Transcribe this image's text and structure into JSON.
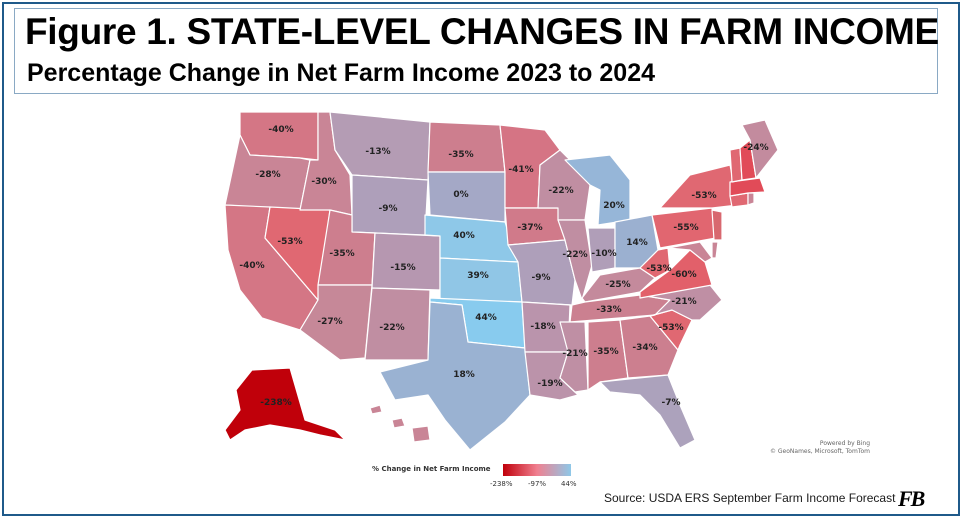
{
  "title": "Figure 1. STATE-LEVEL CHANGES IN FARM INCOME",
  "subtitle": "Percentage Change in Net Farm Income 2023 to 2024",
  "attribution": {
    "line1": "Powered by Bing",
    "line2": "© GeoNames, Microsoft, TomTom"
  },
  "legend": {
    "title": "% Change in Net Farm Income",
    "ticks": [
      "-238%",
      "-97%",
      "44%"
    ],
    "colors": {
      "low": "#c0000a",
      "mid": "#f08090",
      "high": "#8ec8e8"
    }
  },
  "source": "Source: USDA ERS September Farm Income Forecast",
  "logo_text": "FB",
  "states": [
    {
      "id": "WA",
      "label": "-40%",
      "color": "#d47685"
    },
    {
      "id": "OR",
      "label": "-28%",
      "color": "#c98596"
    },
    {
      "id": "CA",
      "label": "-40%",
      "color": "#d47685"
    },
    {
      "id": "NV",
      "label": "-53%",
      "color": "#e06872"
    },
    {
      "id": "ID",
      "label": "-30%",
      "color": "#c98596"
    },
    {
      "id": "MT",
      "label": "-13%",
      "color": "#b49cb4"
    },
    {
      "id": "WY",
      "label": "-9%",
      "color": "#ae9fba"
    },
    {
      "id": "UT",
      "label": "-35%",
      "color": "#cd7e8e"
    },
    {
      "id": "AZ",
      "label": "-27%",
      "color": "#c68898"
    },
    {
      "id": "CO",
      "label": "-15%",
      "color": "#b697b0"
    },
    {
      "id": "NM",
      "label": "-22%",
      "color": "#c08ea2"
    },
    {
      "id": "ND",
      "label": "-35%",
      "color": "#cd7e8e"
    },
    {
      "id": "SD",
      "label": "0%",
      "color": "#a4a8c6"
    },
    {
      "id": "NE",
      "label": "40%",
      "color": "#8ec8e8"
    },
    {
      "id": "KS",
      "label": "39%",
      "color": "#90c6e6"
    },
    {
      "id": "OK",
      "label": "44%",
      "color": "#88cbee"
    },
    {
      "id": "TX",
      "label": "18%",
      "color": "#9ab2d2"
    },
    {
      "id": "MN",
      "label": "-41%",
      "color": "#d57484"
    },
    {
      "id": "IA",
      "label": "-37%",
      "color": "#d07a8a"
    },
    {
      "id": "MO",
      "label": "-9%",
      "color": "#ae9fba"
    },
    {
      "id": "AR",
      "label": "-18%",
      "color": "#ba94ac"
    },
    {
      "id": "LA",
      "label": "-19%",
      "color": "#bb93aa"
    },
    {
      "id": "WI",
      "label": "-22%",
      "color": "#c08ea2"
    },
    {
      "id": "IL",
      "label": "-22%",
      "color": "#c08ea2"
    },
    {
      "id": "MI",
      "label": "20%",
      "color": "#96b6d8"
    },
    {
      "id": "IN",
      "label": "-10%",
      "color": "#b09eb8"
    },
    {
      "id": "OH",
      "label": "14%",
      "color": "#9bb0d0"
    },
    {
      "id": "KY",
      "label": "-25%",
      "color": "#c48a9c"
    },
    {
      "id": "TN",
      "label": "-33%",
      "color": "#cb8090"
    },
    {
      "id": "MS",
      "label": "-21%",
      "color": "#bf8fa4"
    },
    {
      "id": "AL",
      "label": "-35%",
      "color": "#cd7e8e"
    },
    {
      "id": "GA",
      "label": "-34%",
      "color": "#cc7f8f"
    },
    {
      "id": "FL",
      "label": "-7%",
      "color": "#aca2bc"
    },
    {
      "id": "SC",
      "label": "-53%",
      "color": "#e06872"
    },
    {
      "id": "NC",
      "label": "-21%",
      "color": "#bf8fa4"
    },
    {
      "id": "VA",
      "label": "-60%",
      "color": "#e2606a"
    },
    {
      "id": "WV",
      "label": "-53%",
      "color": "#e06872"
    },
    {
      "id": "PA",
      "label": "-55%",
      "color": "#e16670"
    },
    {
      "id": "NY",
      "label": "-53%",
      "color": "#e06872"
    },
    {
      "id": "ME",
      "label": "-24%",
      "color": "#c38b9e"
    },
    {
      "id": "AK",
      "label": "-238%",
      "color": "#c0000a"
    }
  ]
}
